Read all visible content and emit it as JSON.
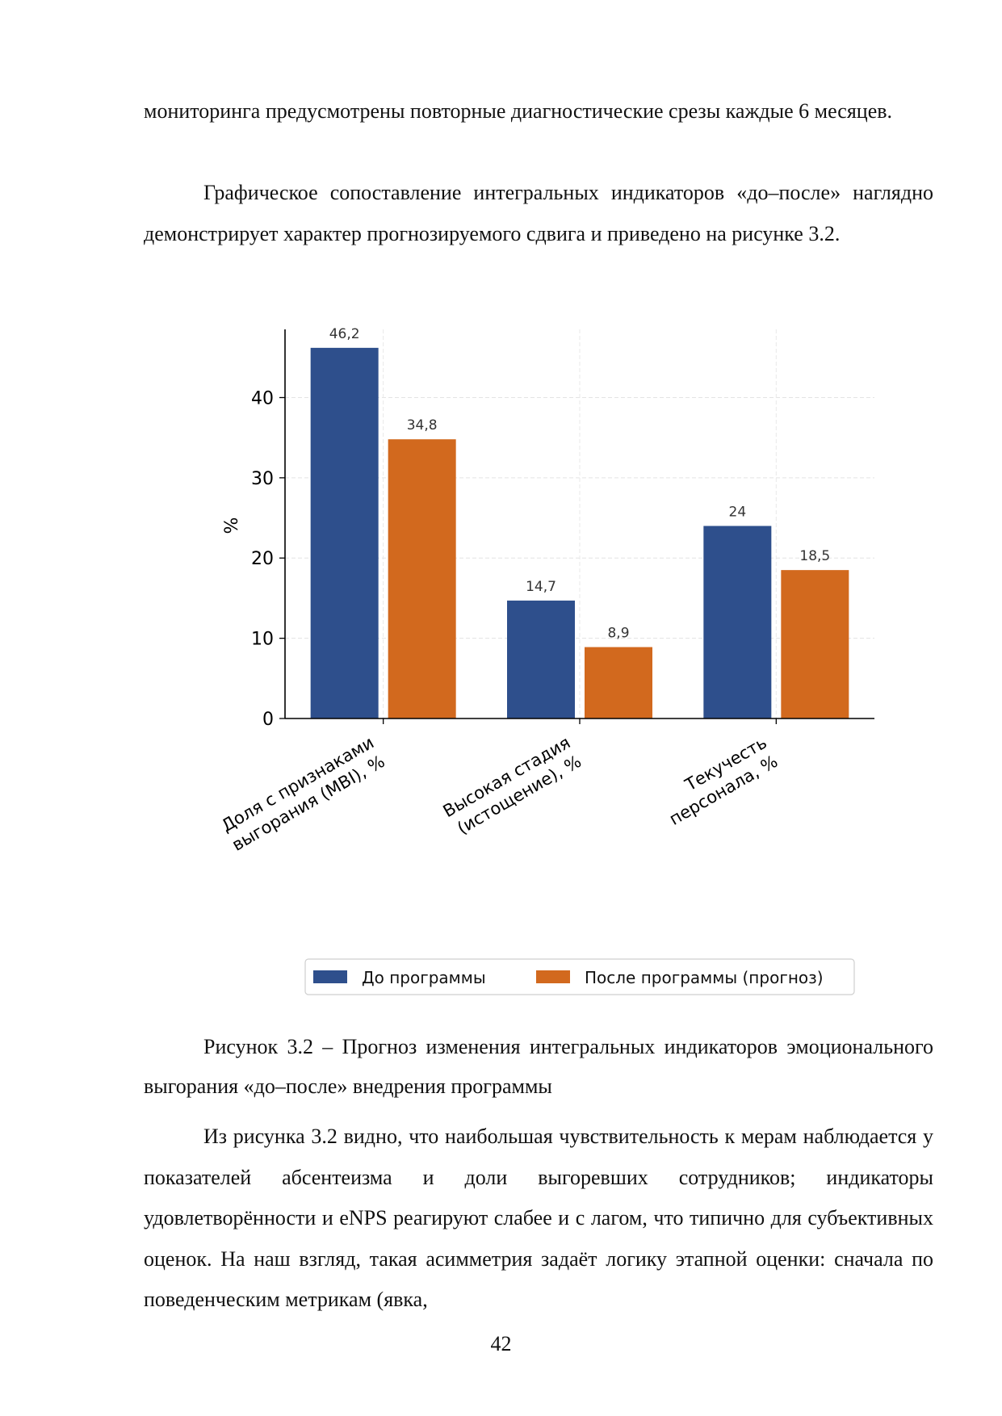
{
  "text": {
    "p1": "мониторинга предусмотрены повторные диагностические срезы каждые 6 месяцев.",
    "p2": "Графическое сопоставление интегральных индикаторов «до–после» наглядно демонстрирует характер прогнозируемого сдвига и приведено на рисунке 3.2.",
    "caption": "Рисунок 3.2 – Прогноз изменения интегральных индикаторов эмоционального выгорания «до–после» внедрения программы",
    "p3": "Из рисунка 3.2 видно, что наибольшая чувствительность к мерам наблюдается у показателей абсентеизма и доли выгоревших сотрудников; индикаторы удовлетворённости и eNPS реагируют слабее и с лагом, что типично для субъективных оценок. На наш взгляд, такая асимметрия задаёт логику этапной оценки: сначала по поведенческим метрикам (явка,",
    "page_number": "42"
  },
  "chart_data": {
    "type": "bar",
    "ylabel": "%",
    "ylim": [
      0,
      48.5
    ],
    "yticks": [
      0,
      10,
      20,
      30,
      40
    ],
    "grid": true,
    "legend_position": "bottom",
    "categories": [
      [
        "Доля с признаками",
        "выгорания (MBI), %"
      ],
      [
        "Высокая стадия",
        "(истощение), %"
      ],
      [
        "Текучесть",
        "персонала, %"
      ]
    ],
    "series": [
      {
        "name": "До программы",
        "values": [
          46.2,
          14.7,
          24
        ],
        "labels": [
          "46,2",
          "14,7",
          "24"
        ],
        "color": "#2e4f8c"
      },
      {
        "name": "После программы (прогноз)",
        "values": [
          34.8,
          8.9,
          18.5
        ],
        "labels": [
          "34,8",
          "8,9",
          "18,5"
        ],
        "color": "#d2691e"
      }
    ]
  }
}
